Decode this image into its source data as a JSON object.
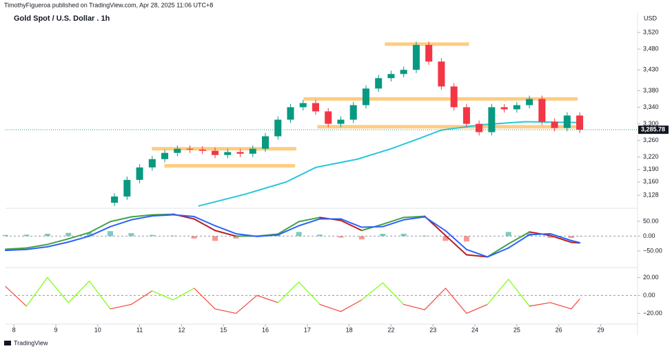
{
  "header": {
    "byline": "TimothyFigueroa published on TradingView.com, Apr 28, 2025 11:06 UTC+8",
    "footer": "TradingView"
  },
  "chart_data": [
    {
      "type": "candlestick",
      "title": "Gold Spot / U.S. Dollar . 1h",
      "currency": "USD",
      "x": [
        2.4,
        2.7,
        3.0,
        3.3,
        3.6,
        3.9,
        4.2,
        4.5,
        4.8,
        5.1,
        5.4,
        5.7,
        6.0,
        6.3,
        6.6,
        6.9,
        7.2,
        7.5,
        7.8,
        8.1,
        8.4,
        8.7,
        9.0,
        9.3,
        9.6,
        9.9,
        10.2,
        10.5,
        10.8,
        11.1,
        11.4,
        11.7,
        12.0,
        12.3,
        12.6,
        12.9,
        13.2,
        13.5
      ],
      "open": [
        3110,
        3125,
        3165,
        3195,
        3215,
        3230,
        3240,
        3238,
        3235,
        3225,
        3232,
        3228,
        3240,
        3270,
        3310,
        3340,
        3350,
        3330,
        3300,
        3310,
        3345,
        3385,
        3410,
        3420,
        3430,
        3490,
        3450,
        3390,
        3340,
        3300,
        3280,
        3340,
        3335,
        3345,
        3360,
        3305,
        3290,
        3320
      ],
      "high": [
        3133,
        3173,
        3203,
        3223,
        3238,
        3248,
        3248,
        3246,
        3243,
        3240,
        3240,
        3248,
        3278,
        3318,
        3348,
        3358,
        3358,
        3338,
        3318,
        3353,
        3393,
        3418,
        3428,
        3438,
        3498,
        3498,
        3458,
        3398,
        3348,
        3308,
        3348,
        3348,
        3353,
        3368,
        3368,
        3313,
        3328,
        3328
      ],
      "low": [
        3102,
        3117,
        3157,
        3187,
        3207,
        3222,
        3230,
        3227,
        3217,
        3217,
        3220,
        3220,
        3232,
        3262,
        3302,
        3332,
        3322,
        3292,
        3292,
        3302,
        3337,
        3377,
        3402,
        3412,
        3422,
        3442,
        3382,
        3332,
        3292,
        3272,
        3272,
        3327,
        3327,
        3337,
        3297,
        3282,
        3282,
        3277.78
      ],
      "close": [
        3125,
        3165,
        3195,
        3215,
        3230,
        3240,
        3238,
        3235,
        3225,
        3232,
        3228,
        3240,
        3270,
        3310,
        3340,
        3350,
        3330,
        3300,
        3310,
        3345,
        3385,
        3410,
        3420,
        3430,
        3490,
        3450,
        3390,
        3340,
        3300,
        3280,
        3340,
        3335,
        3345,
        3360,
        3305,
        3290,
        3320,
        3285.78
      ],
      "up_color": "#089981",
      "down_color": "#f23645",
      "xlim": [
        -0.2,
        14.88
      ],
      "xticks": [
        {
          "value": 0,
          "label": "8"
        },
        {
          "value": 1,
          "label": "9"
        },
        {
          "value": 2,
          "label": "10"
        },
        {
          "value": 3,
          "label": "11"
        },
        {
          "value": 4,
          "label": "12"
        },
        {
          "value": 5,
          "label": "15"
        },
        {
          "value": 6,
          "label": "16"
        },
        {
          "value": 7,
          "label": "17"
        },
        {
          "value": 8,
          "label": "18"
        },
        {
          "value": 9,
          "label": "22"
        },
        {
          "value": 10,
          "label": "23"
        },
        {
          "value": 11,
          "label": "24"
        },
        {
          "value": 12,
          "label": "25"
        },
        {
          "value": 13,
          "label": "26"
        },
        {
          "value": 14,
          "label": "29"
        }
      ],
      "ylim": [
        3100,
        3565
      ],
      "yticks": [
        {
          "value": 3520,
          "label": "3,520"
        },
        {
          "value": 3480,
          "label": "3,480"
        },
        {
          "value": 3430,
          "label": "3,430"
        },
        {
          "value": 3380,
          "label": "3,380"
        },
        {
          "value": 3340,
          "label": "3,340"
        },
        {
          "value": 3300,
          "label": "3,300"
        },
        {
          "value": 3260,
          "label": "3,260"
        },
        {
          "value": 3220,
          "label": "3,220"
        },
        {
          "value": 3190,
          "label": "3,190"
        },
        {
          "value": 3160,
          "label": "3,160"
        },
        {
          "value": 3128,
          "label": "3,128"
        }
      ],
      "last_price": {
        "value": 3285.78,
        "label": "3,285.78"
      },
      "overlay": {
        "x": [
          4.4,
          5.5,
          6.5,
          7.2,
          8.2,
          9.0,
          9.6,
          10.2,
          11.2,
          12.2,
          13.5
        ],
        "values": [
          3102,
          3130,
          3160,
          3195,
          3215,
          3240,
          3262,
          3285,
          3298,
          3305,
          3303
        ],
        "color": "#26c6da"
      },
      "zones": [
        {
          "x": [
            3.29,
            6.74
          ],
          "y": 3240
        },
        {
          "x": [
            3.59,
            6.71
          ],
          "y": 3199
        },
        {
          "x": [
            6.91,
            13.45
          ],
          "y": 3360
        },
        {
          "x": [
            7.24,
            13.45
          ],
          "y": 3293
        },
        {
          "x": [
            8.85,
            10.86
          ],
          "y": 3492
        }
      ],
      "zone_color": "#ffcc80"
    },
    {
      "type": "line",
      "xlim": [
        -0.2,
        14.88
      ],
      "ylim": [
        -99,
        87
      ],
      "yticks": [
        {
          "value": 50,
          "label": "50.00"
        },
        {
          "value": 0,
          "label": "0.00"
        },
        {
          "value": -50,
          "label": "−50.00"
        }
      ],
      "x": [
        -0.2,
        0.3,
        0.8,
        1.3,
        1.8,
        2.3,
        2.8,
        3.3,
        3.8,
        4.3,
        4.8,
        5.3,
        5.8,
        6.3,
        6.8,
        7.3,
        7.8,
        8.3,
        8.8,
        9.3,
        9.8,
        10.3,
        10.8,
        11.3,
        11.8,
        12.3,
        12.8,
        13.3,
        13.5
      ],
      "series": [
        {
          "color": "#43a047",
          "down_color": "#b71c1c",
          "values": [
            -44,
            -40,
            -28,
            -9,
            12,
            49,
            65,
            72,
            74,
            58,
            19,
            0,
            0,
            7,
            49,
            63,
            53,
            19,
            40,
            63,
            67,
            2,
            -63,
            -70,
            -26,
            14,
            2,
            -21,
            -23
          ]
        },
        {
          "color": "#2962ff",
          "values": [
            -48,
            -45,
            -36,
            -20,
            0,
            32,
            55,
            68,
            72,
            66,
            35,
            8,
            -1,
            4,
            35,
            58,
            58,
            30,
            32,
            55,
            65,
            18,
            -45,
            -70,
            -40,
            5,
            8,
            -15,
            -22
          ]
        }
      ],
      "histogram": {
        "up_color": "#26a69a",
        "down_color": "#ef5350",
        "values": [
          4,
          5,
          8,
          11,
          12,
          17,
          10,
          4,
          2,
          -8,
          -16,
          -8,
          1,
          3,
          14,
          5,
          -5,
          -11,
          8,
          8,
          2,
          -16,
          -18,
          0,
          14,
          9,
          -6,
          -6,
          -1
        ]
      }
    },
    {
      "type": "line",
      "xlim": [
        -0.2,
        14.88
      ],
      "ylim": [
        -32,
        28
      ],
      "yticks": [
        {
          "value": 20,
          "label": "20.00"
        },
        {
          "value": 0,
          "label": "0.00"
        },
        {
          "value": -20,
          "label": "−20.00"
        }
      ],
      "x": [
        -0.2,
        0.3,
        0.8,
        1.3,
        1.8,
        2.3,
        2.8,
        3.3,
        3.8,
        4.3,
        4.8,
        5.3,
        5.8,
        6.3,
        6.8,
        7.3,
        7.8,
        8.3,
        8.8,
        9.3,
        9.8,
        10.3,
        10.8,
        11.3,
        11.8,
        12.3,
        12.8,
        13.3,
        13.5
      ],
      "series": [
        {
          "color": "#76ff03",
          "down_color": "#f44336",
          "values": [
            10,
            -12,
            20,
            -8,
            16,
            -15,
            -10,
            5,
            -5,
            8,
            -15,
            -20,
            0,
            -8,
            15,
            -10,
            -18,
            -5,
            14,
            -10,
            -16,
            8,
            -20,
            -10,
            18,
            -12,
            -8,
            -15,
            -4
          ]
        }
      ]
    }
  ]
}
